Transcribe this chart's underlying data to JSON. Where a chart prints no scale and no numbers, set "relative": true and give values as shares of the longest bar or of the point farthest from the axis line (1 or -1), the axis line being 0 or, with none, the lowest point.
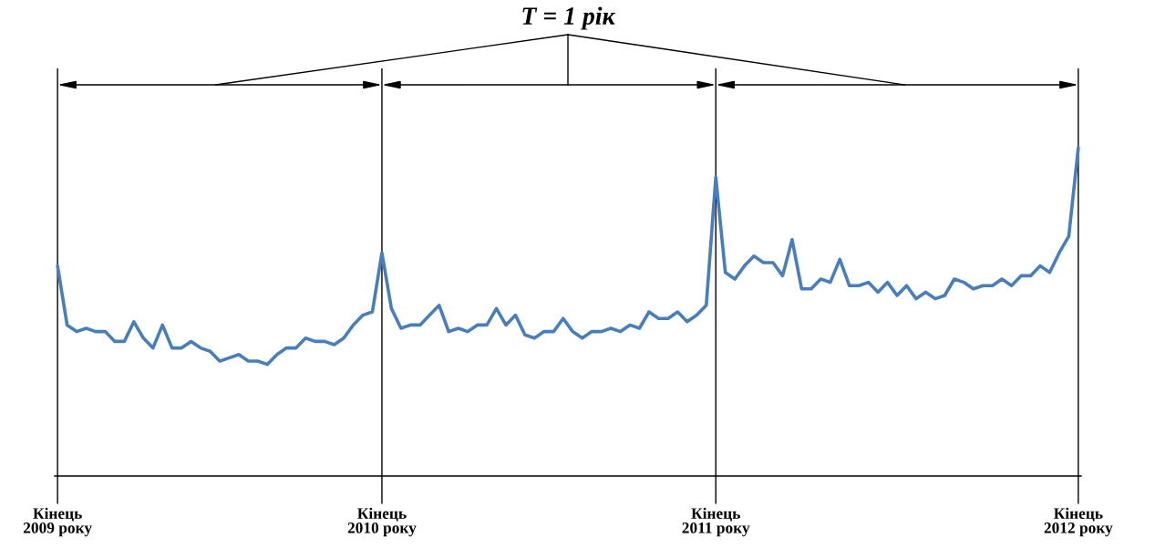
{
  "chart_data": {
    "type": "line",
    "title": "T = 1 рік",
    "relative": true,
    "categories": [
      "Кінець\n2009 року",
      null,
      null,
      null,
      null,
      null,
      null,
      null,
      null,
      null,
      null,
      null,
      null,
      null,
      null,
      null,
      null,
      null,
      null,
      null,
      null,
      null,
      null,
      null,
      null,
      null,
      null,
      null,
      null,
      null,
      null,
      null,
      null,
      null,
      "Кінець\n2010 року",
      null,
      null,
      null,
      null,
      null,
      null,
      null,
      null,
      null,
      null,
      null,
      null,
      null,
      null,
      null,
      null,
      null,
      null,
      null,
      null,
      null,
      null,
      null,
      null,
      null,
      null,
      null,
      null,
      null,
      null,
      null,
      null,
      null,
      null,
      "Кінець\n2011 року",
      null,
      null,
      null,
      null,
      null,
      null,
      null,
      null,
      null,
      null,
      null,
      null,
      null,
      null,
      null,
      null,
      null,
      null,
      null,
      null,
      null,
      null,
      null,
      null,
      null,
      null,
      null,
      null,
      null,
      null,
      null,
      null,
      null,
      null,
      null,
      null,
      null,
      "Кінець\n2012 року"
    ],
    "tick_labels": "x",
    "grid": false,
    "legend": false,
    "marker": "none",
    "line_style": "solid",
    "ref_lines": [
      {
        "axis": "x",
        "value": "Кінець\n2009 року",
        "color": "#000000"
      },
      {
        "axis": "x",
        "value": "Кінець\n2010 року",
        "color": "#000000"
      },
      {
        "axis": "x",
        "value": "Кінець\n2011 року",
        "color": "#000000"
      },
      {
        "axis": "x",
        "value": "Кінець\n2012 року",
        "color": "#000000"
      }
    ],
    "series": [
      {
        "color": "#4a7ebb",
        "values": [
          0.64,
          0.46,
          0.44,
          0.45,
          0.44,
          0.44,
          0.41,
          0.41,
          0.47,
          0.42,
          0.39,
          0.46,
          0.39,
          0.39,
          0.41,
          0.39,
          0.38,
          0.35,
          0.36,
          0.37,
          0.35,
          0.35,
          0.34,
          0.37,
          0.39,
          0.39,
          0.42,
          0.41,
          0.41,
          0.4,
          0.42,
          0.46,
          0.49,
          0.5,
          0.68,
          0.51,
          0.45,
          0.46,
          0.46,
          0.49,
          0.52,
          0.44,
          0.45,
          0.44,
          0.46,
          0.46,
          0.51,
          0.46,
          0.49,
          0.43,
          0.42,
          0.44,
          0.44,
          0.48,
          0.44,
          0.42,
          0.44,
          0.44,
          0.45,
          0.44,
          0.46,
          0.45,
          0.5,
          0.48,
          0.48,
          0.5,
          0.47,
          0.49,
          0.52,
          0.91,
          0.62,
          0.6,
          0.64,
          0.67,
          0.65,
          0.65,
          0.61,
          0.72,
          0.57,
          0.57,
          0.6,
          0.59,
          0.66,
          0.58,
          0.58,
          0.59,
          0.56,
          0.59,
          0.55,
          0.58,
          0.54,
          0.56,
          0.54,
          0.55,
          0.6,
          0.59,
          0.57,
          0.58,
          0.58,
          0.6,
          0.58,
          0.61,
          0.61,
          0.64,
          0.62,
          0.68,
          0.73,
          1.0
        ]
      }
    ]
  }
}
